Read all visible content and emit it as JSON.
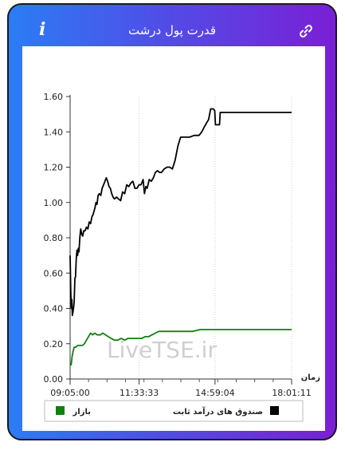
{
  "header": {
    "title": "قدرت پول درشت",
    "info_icon": "info-icon",
    "link_icon": "link-icon"
  },
  "chart_data": {
    "type": "line",
    "ylim": [
      0,
      1.6
    ],
    "yticks": [
      "0.00",
      "0.20",
      "0.40",
      "0.60",
      "0.80",
      "1.00",
      "1.20",
      "1.40",
      "1.60"
    ],
    "x_range_seconds": [
      0,
      32471
    ],
    "xticks": [
      {
        "t": 0,
        "label": "09:05:00"
      },
      {
        "t": 10113,
        "label": "11:33:33"
      },
      {
        "t": 21244,
        "label": "14:59:04"
      },
      {
        "t": 32471,
        "label": "18:01:11"
      }
    ],
    "xlabel": "زمان",
    "watermark": "LiveTSE.ir",
    "series": [
      {
        "name": "صندوق های درآمد ثابت",
        "color": "#000000",
        "points": [
          [
            0,
            0.7
          ],
          [
            90,
            0.5
          ],
          [
            180,
            0.4
          ],
          [
            260,
            0.45
          ],
          [
            330,
            0.36
          ],
          [
            420,
            0.38
          ],
          [
            520,
            0.41
          ],
          [
            600,
            0.44
          ],
          [
            700,
            0.57
          ],
          [
            800,
            0.58
          ],
          [
            900,
            0.68
          ],
          [
            1000,
            0.73
          ],
          [
            1100,
            0.7
          ],
          [
            1200,
            0.74
          ],
          [
            1300,
            0.72
          ],
          [
            1420,
            0.8
          ],
          [
            1550,
            0.85
          ],
          [
            1700,
            0.82
          ],
          [
            1850,
            0.81
          ],
          [
            2000,
            0.84
          ],
          [
            2200,
            0.84
          ],
          [
            2400,
            0.86
          ],
          [
            2600,
            0.85
          ],
          [
            2800,
            0.89
          ],
          [
            3000,
            0.88
          ],
          [
            3200,
            0.92
          ],
          [
            3350,
            0.93
          ],
          [
            3500,
            0.95
          ],
          [
            3650,
            0.97
          ],
          [
            3800,
            1.0
          ],
          [
            3950,
            0.99
          ],
          [
            4100,
            1.04
          ],
          [
            4300,
            1.05
          ],
          [
            4500,
            1.04
          ],
          [
            4700,
            1.08
          ],
          [
            4900,
            1.1
          ],
          [
            5100,
            1.12
          ],
          [
            5300,
            1.14
          ],
          [
            5500,
            1.12
          ],
          [
            5700,
            1.09
          ],
          [
            5900,
            1.08
          ],
          [
            6100,
            1.05
          ],
          [
            6300,
            1.03
          ],
          [
            6500,
            1.02
          ],
          [
            6800,
            1.03
          ],
          [
            7100,
            1.02
          ],
          [
            7400,
            1.01
          ],
          [
            7700,
            1.06
          ],
          [
            8000,
            1.05
          ],
          [
            8300,
            1.1
          ],
          [
            8600,
            1.09
          ],
          [
            8900,
            1.11
          ],
          [
            9200,
            1.12
          ],
          [
            9500,
            1.08
          ],
          [
            9800,
            1.08
          ],
          [
            10100,
            1.1
          ],
          [
            10400,
            1.1
          ],
          [
            10700,
            1.13
          ],
          [
            10900,
            1.05
          ],
          [
            11100,
            1.09
          ],
          [
            11300,
            1.08
          ],
          [
            11600,
            1.13
          ],
          [
            11900,
            1.12
          ],
          [
            12200,
            1.14
          ],
          [
            12500,
            1.17
          ],
          [
            12800,
            1.18
          ],
          [
            13100,
            1.17
          ],
          [
            13400,
            1.17
          ],
          [
            13800,
            1.19
          ],
          [
            14200,
            1.2
          ],
          [
            14600,
            1.2
          ],
          [
            15000,
            1.19
          ],
          [
            15400,
            1.24
          ],
          [
            15800,
            1.32
          ],
          [
            16200,
            1.37
          ],
          [
            16800,
            1.37
          ],
          [
            17500,
            1.37
          ],
          [
            18200,
            1.38
          ],
          [
            18900,
            1.38
          ],
          [
            19300,
            1.4
          ],
          [
            19700,
            1.43
          ],
          [
            20000,
            1.45
          ],
          [
            20300,
            1.47
          ],
          [
            20600,
            1.53
          ],
          [
            21000,
            1.53
          ],
          [
            21200,
            1.52
          ],
          [
            21300,
            1.44
          ],
          [
            21600,
            1.44
          ],
          [
            21900,
            1.44
          ],
          [
            22000,
            1.51
          ],
          [
            22300,
            1.51
          ],
          [
            24000,
            1.51
          ],
          [
            26000,
            1.51
          ],
          [
            28000,
            1.51
          ],
          [
            30000,
            1.51
          ],
          [
            32471,
            1.51
          ]
        ]
      },
      {
        "name": "بازار",
        "color": "#118011",
        "points": [
          [
            0,
            0.09
          ],
          [
            150,
            0.08
          ],
          [
            300,
            0.13
          ],
          [
            450,
            0.16
          ],
          [
            600,
            0.18
          ],
          [
            800,
            0.18
          ],
          [
            1100,
            0.19
          ],
          [
            1400,
            0.19
          ],
          [
            1800,
            0.19
          ],
          [
            2100,
            0.2
          ],
          [
            2400,
            0.22
          ],
          [
            2700,
            0.24
          ],
          [
            3000,
            0.26
          ],
          [
            3300,
            0.25
          ],
          [
            3600,
            0.26
          ],
          [
            4000,
            0.25
          ],
          [
            4400,
            0.25
          ],
          [
            4800,
            0.26
          ],
          [
            5200,
            0.25
          ],
          [
            5600,
            0.24
          ],
          [
            6000,
            0.23
          ],
          [
            6500,
            0.22
          ],
          [
            7000,
            0.22
          ],
          [
            7500,
            0.23
          ],
          [
            8000,
            0.22
          ],
          [
            8500,
            0.23
          ],
          [
            9000,
            0.23
          ],
          [
            9500,
            0.23
          ],
          [
            10000,
            0.23
          ],
          [
            10500,
            0.23
          ],
          [
            11000,
            0.24
          ],
          [
            11500,
            0.24
          ],
          [
            12000,
            0.25
          ],
          [
            12500,
            0.26
          ],
          [
            13000,
            0.27
          ],
          [
            14000,
            0.27
          ],
          [
            15000,
            0.27
          ],
          [
            16000,
            0.27
          ],
          [
            17000,
            0.27
          ],
          [
            18000,
            0.27
          ],
          [
            19000,
            0.28
          ],
          [
            20000,
            0.28
          ],
          [
            22000,
            0.28
          ],
          [
            24000,
            0.28
          ],
          [
            26000,
            0.28
          ],
          [
            28000,
            0.28
          ],
          [
            30000,
            0.28
          ],
          [
            32471,
            0.28
          ]
        ]
      }
    ],
    "legend": "bottom"
  }
}
